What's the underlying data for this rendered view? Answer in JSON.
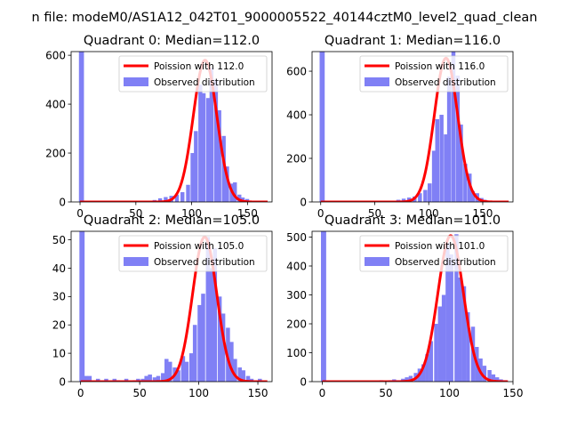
{
  "figure_title": "n file: modeM0/AS1A12_042T01_9000005522_40144cztM0_level2_quad_clean",
  "colors": {
    "observed": "#8080f5",
    "poisson": "#ff0000",
    "axis": "#000000"
  },
  "chart_data": [
    {
      "type": "bar",
      "title": "Quadrant 0: Median=112.0",
      "median": 112.0,
      "legend": {
        "placement": "top-right",
        "poisson_label": "Poission with 112.0",
        "observed_label": "Observed distribution"
      },
      "xlim": [
        -8,
        172
      ],
      "ylim": [
        0,
        615
      ],
      "xticks": [
        0,
        50,
        100,
        150
      ],
      "yticks": [
        0,
        200,
        400,
        600
      ],
      "bar_width": 3.5,
      "bars": [
        [
          -1,
          615
        ],
        [
          0,
          615
        ],
        [
          55,
          3
        ],
        [
          60,
          5
        ],
        [
          65,
          8
        ],
        [
          70,
          15
        ],
        [
          75,
          20
        ],
        [
          80,
          25
        ],
        [
          85,
          30
        ],
        [
          90,
          40
        ],
        [
          95,
          70
        ],
        [
          99,
          200
        ],
        [
          102,
          290
        ],
        [
          106,
          480
        ],
        [
          109,
          445
        ],
        [
          113,
          425
        ],
        [
          116,
          550
        ],
        [
          120,
          500
        ],
        [
          123,
          375
        ],
        [
          127,
          270
        ],
        [
          130,
          145
        ],
        [
          134,
          75
        ],
        [
          137,
          80
        ],
        [
          141,
          30
        ],
        [
          144,
          18
        ],
        [
          148,
          12
        ],
        [
          151,
          5
        ],
        [
          158,
          4
        ],
        [
          162,
          2
        ]
      ],
      "poisson_peak": 580
    },
    {
      "type": "bar",
      "title": "Quadrant 1: Median=116.0",
      "median": 116.0,
      "legend": {
        "placement": "top-right",
        "poisson_label": "Poission with 116.0",
        "observed_label": "Observed distribution"
      },
      "xlim": [
        -8,
        178
      ],
      "ylim": [
        0,
        690
      ],
      "xticks": [
        0,
        50,
        100,
        150
      ],
      "yticks": [
        0,
        200,
        400,
        600
      ],
      "bar_width": 3.7,
      "bars": [
        [
          -1,
          690
        ],
        [
          0,
          690
        ],
        [
          55,
          2
        ],
        [
          60,
          4
        ],
        [
          65,
          5
        ],
        [
          70,
          10
        ],
        [
          75,
          15
        ],
        [
          80,
          20
        ],
        [
          85,
          25
        ],
        [
          90,
          40
        ],
        [
          95,
          55
        ],
        [
          99,
          85
        ],
        [
          103,
          235
        ],
        [
          106,
          380
        ],
        [
          110,
          400
        ],
        [
          114,
          310
        ],
        [
          117,
          575
        ],
        [
          121,
          690
        ],
        [
          125,
          580
        ],
        [
          128,
          355
        ],
        [
          132,
          175
        ],
        [
          136,
          130
        ],
        [
          139,
          50
        ],
        [
          143,
          40
        ],
        [
          147,
          18
        ],
        [
          150,
          10
        ],
        [
          154,
          6
        ],
        [
          160,
          3
        ],
        [
          168,
          2
        ]
      ],
      "poisson_peak": 660
    },
    {
      "type": "bar",
      "title": "Quadrant 2: Median=105.0",
      "median": 105.0,
      "legend": {
        "placement": "top-right",
        "poisson_label": "Poission with 105.0",
        "observed_label": "Observed distribution"
      },
      "xlim": [
        -8,
        162
      ],
      "ylim": [
        0,
        53
      ],
      "xticks": [
        0,
        50,
        100,
        150
      ],
      "yticks": [
        0,
        10,
        20,
        30,
        40,
        50
      ],
      "bar_width": 3.4,
      "bars": [
        [
          -1,
          53
        ],
        [
          0,
          53
        ],
        [
          3,
          2
        ],
        [
          6,
          2
        ],
        [
          13,
          1
        ],
        [
          20,
          1
        ],
        [
          27,
          1
        ],
        [
          30,
          0.5
        ],
        [
          37,
          1
        ],
        [
          44,
          0.5
        ],
        [
          47,
          1
        ],
        [
          51,
          1
        ],
        [
          54,
          2
        ],
        [
          57,
          2.5
        ],
        [
          61,
          1.5
        ],
        [
          64,
          2
        ],
        [
          68,
          3
        ],
        [
          71,
          8
        ],
        [
          74,
          7
        ],
        [
          78,
          5
        ],
        [
          81,
          4
        ],
        [
          85,
          9
        ],
        [
          88,
          7
        ],
        [
          92,
          10
        ],
        [
          95,
          20
        ],
        [
          99,
          27
        ],
        [
          102,
          31
        ],
        [
          106,
          51
        ],
        [
          109,
          40
        ],
        [
          112,
          47
        ],
        [
          116,
          30
        ],
        [
          119,
          24
        ],
        [
          123,
          19
        ],
        [
          126,
          14
        ],
        [
          129,
          8
        ],
        [
          133,
          5
        ],
        [
          136,
          4
        ],
        [
          140,
          2
        ],
        [
          143,
          1
        ],
        [
          150,
          1
        ]
      ],
      "poisson_peak": 51
    },
    {
      "type": "bar",
      "title": "Quadrant 3: Median=101.0",
      "median": 101.0,
      "legend": {
        "placement": "top-right",
        "poisson_label": "Poission with 101.0",
        "observed_label": "Observed distribution"
      },
      "xlim": [
        -8,
        150
      ],
      "ylim": [
        0,
        520
      ],
      "xticks": [
        0,
        50,
        100,
        150
      ],
      "yticks": [
        0,
        100,
        200,
        300,
        400,
        500
      ],
      "bar_width": 3.1,
      "bars": [
        [
          -1,
          520
        ],
        [
          0,
          520
        ],
        [
          45,
          5
        ],
        [
          52,
          5
        ],
        [
          55,
          8
        ],
        [
          58,
          5
        ],
        [
          62,
          10
        ],
        [
          65,
          15
        ],
        [
          68,
          20
        ],
        [
          72,
          30
        ],
        [
          75,
          45
        ],
        [
          78,
          60
        ],
        [
          81,
          95
        ],
        [
          84,
          140
        ],
        [
          88,
          200
        ],
        [
          91,
          260
        ],
        [
          94,
          300
        ],
        [
          97,
          480
        ],
        [
          100,
          440
        ],
        [
          104,
          510
        ],
        [
          107,
          360
        ],
        [
          110,
          330
        ],
        [
          113,
          240
        ],
        [
          117,
          190
        ],
        [
          120,
          120
        ],
        [
          123,
          80
        ],
        [
          126,
          55
        ],
        [
          130,
          40
        ],
        [
          133,
          25
        ],
        [
          136,
          15
        ],
        [
          139,
          8
        ],
        [
          142,
          5
        ]
      ],
      "poisson_peak": 505
    }
  ]
}
